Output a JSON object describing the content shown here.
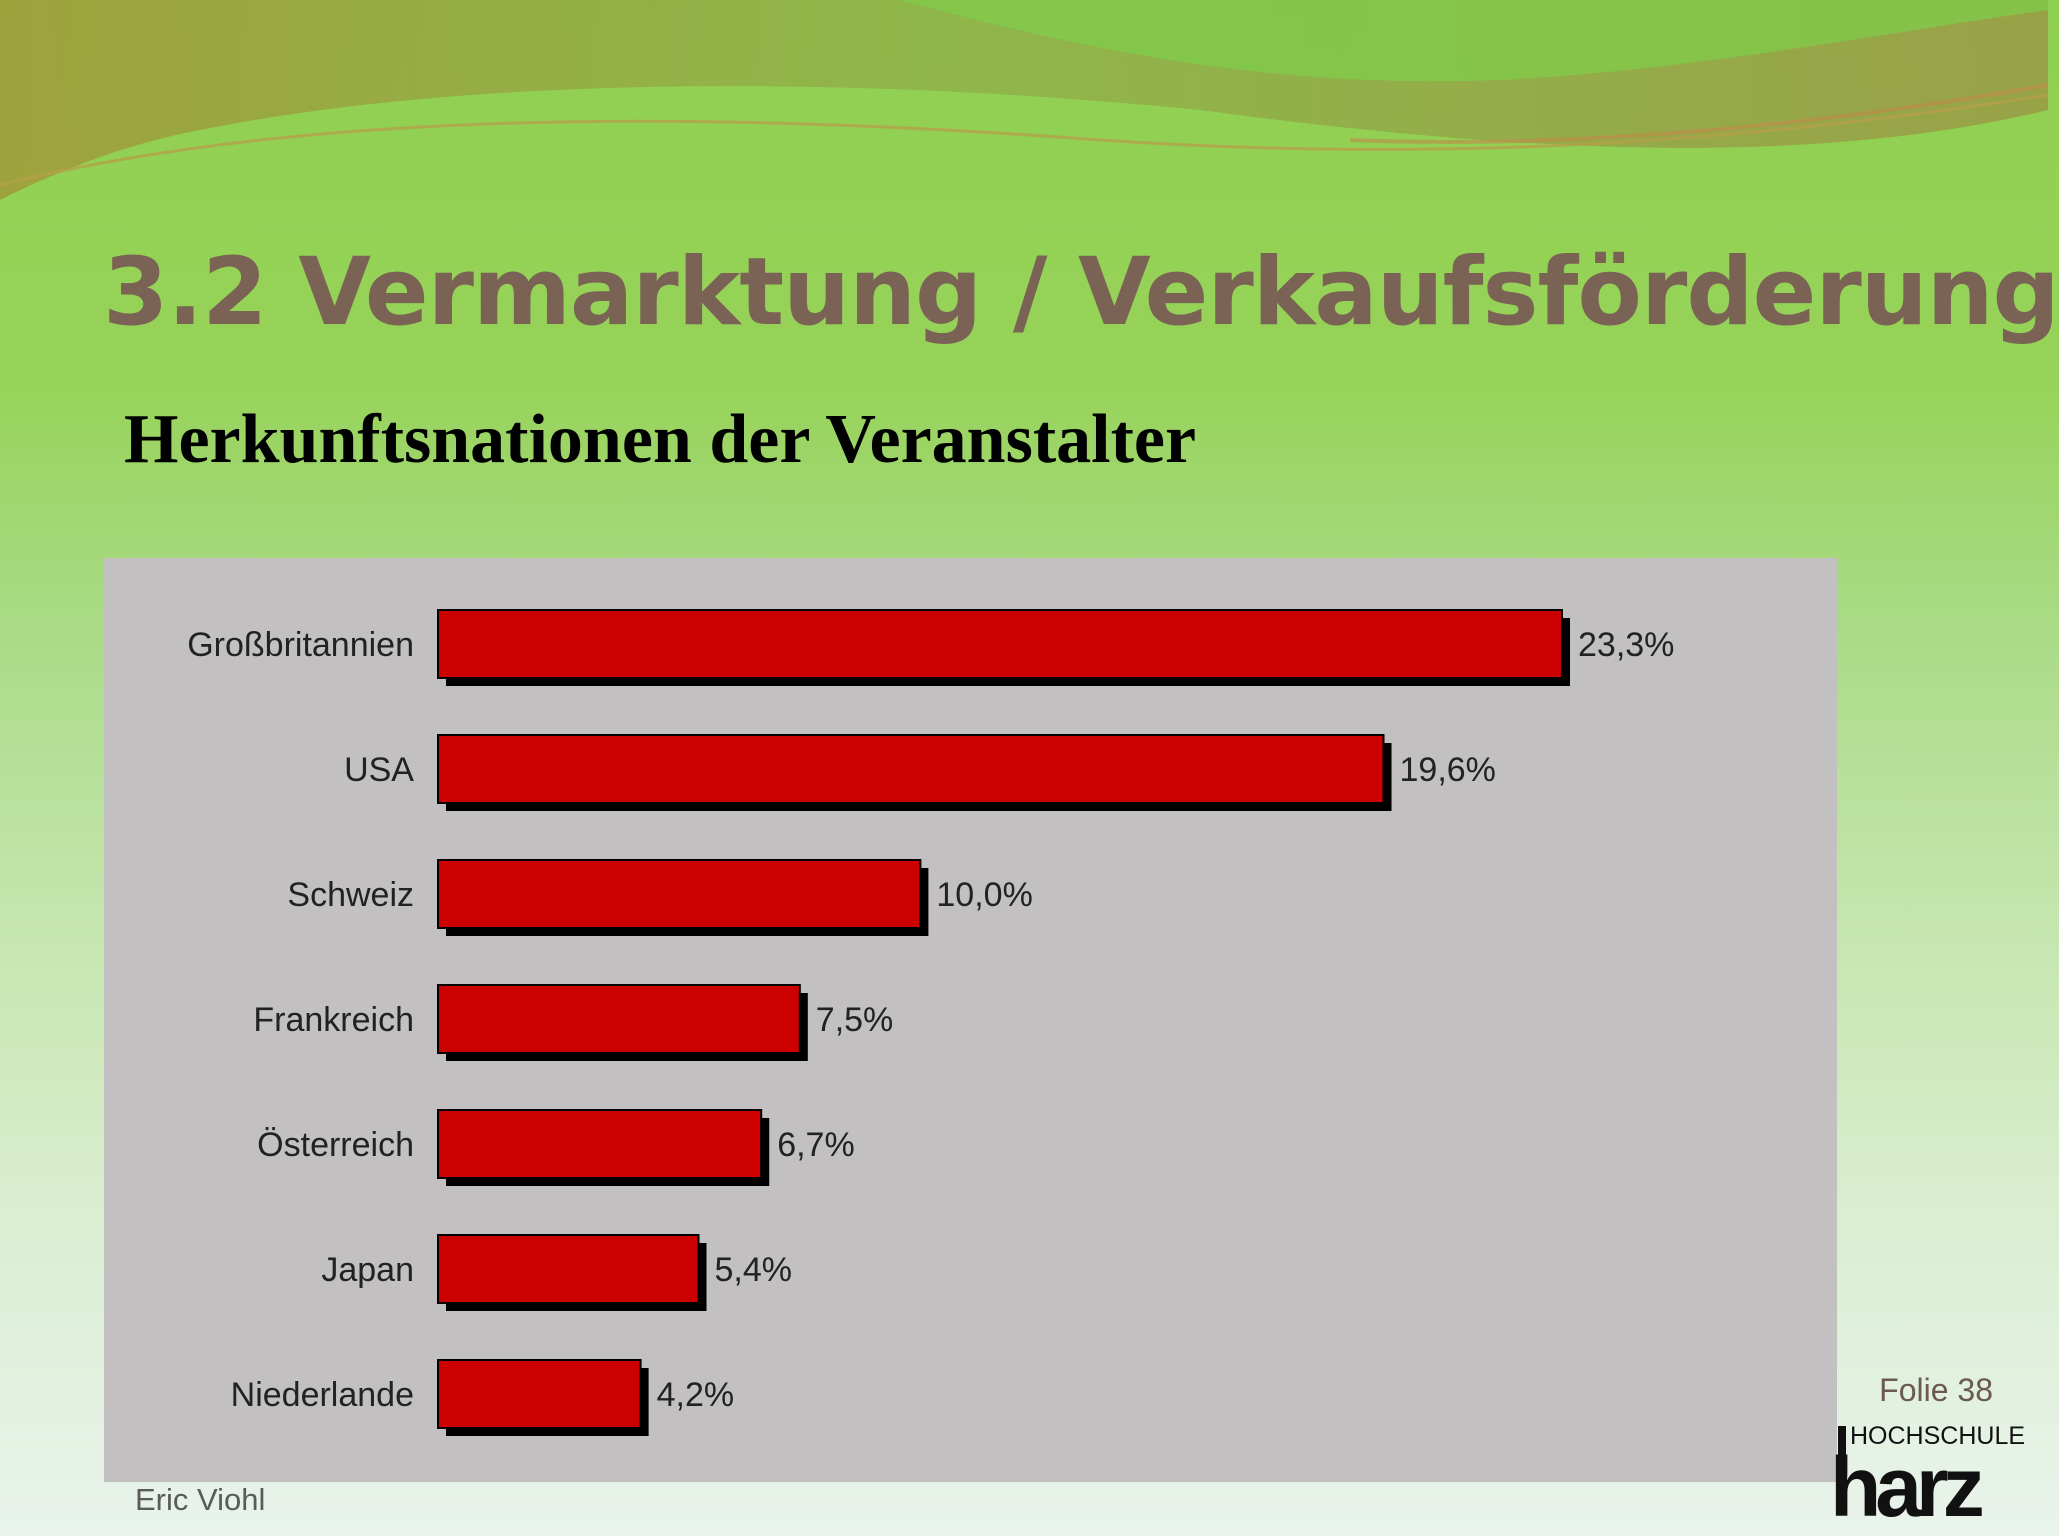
{
  "slide": {
    "title": "3.2  Vermarktung / Verkaufsförderung",
    "subtitle": "Herkunftsnationen der Veranstalter",
    "author": "Eric Viohl",
    "slide_number": "Folie 38",
    "logo": {
      "top_text": "HOCHSCHULE",
      "main_text": "harz"
    }
  },
  "colors": {
    "title": "#7a6355",
    "bar_fill": "#cc0000",
    "bar_shadow": "#000000",
    "panel_bg": "#c2c0c1",
    "logo_main": "#1f6f73"
  },
  "chart_data": {
    "type": "bar",
    "orientation": "horizontal",
    "categories": [
      "Großbritannien",
      "USA",
      "Schweiz",
      "Frankreich",
      "Österreich",
      "Japan",
      "Niederlande"
    ],
    "values": [
      23.3,
      19.6,
      10.0,
      7.5,
      6.7,
      5.4,
      4.2
    ],
    "value_labels": [
      "23,3%",
      "19,6%",
      "10,0%",
      "7,5%",
      "6,7%",
      "5,4%",
      "4,2%"
    ],
    "unit": "%",
    "xlim": [
      0,
      23.3
    ],
    "grid": false,
    "legend": "none"
  }
}
